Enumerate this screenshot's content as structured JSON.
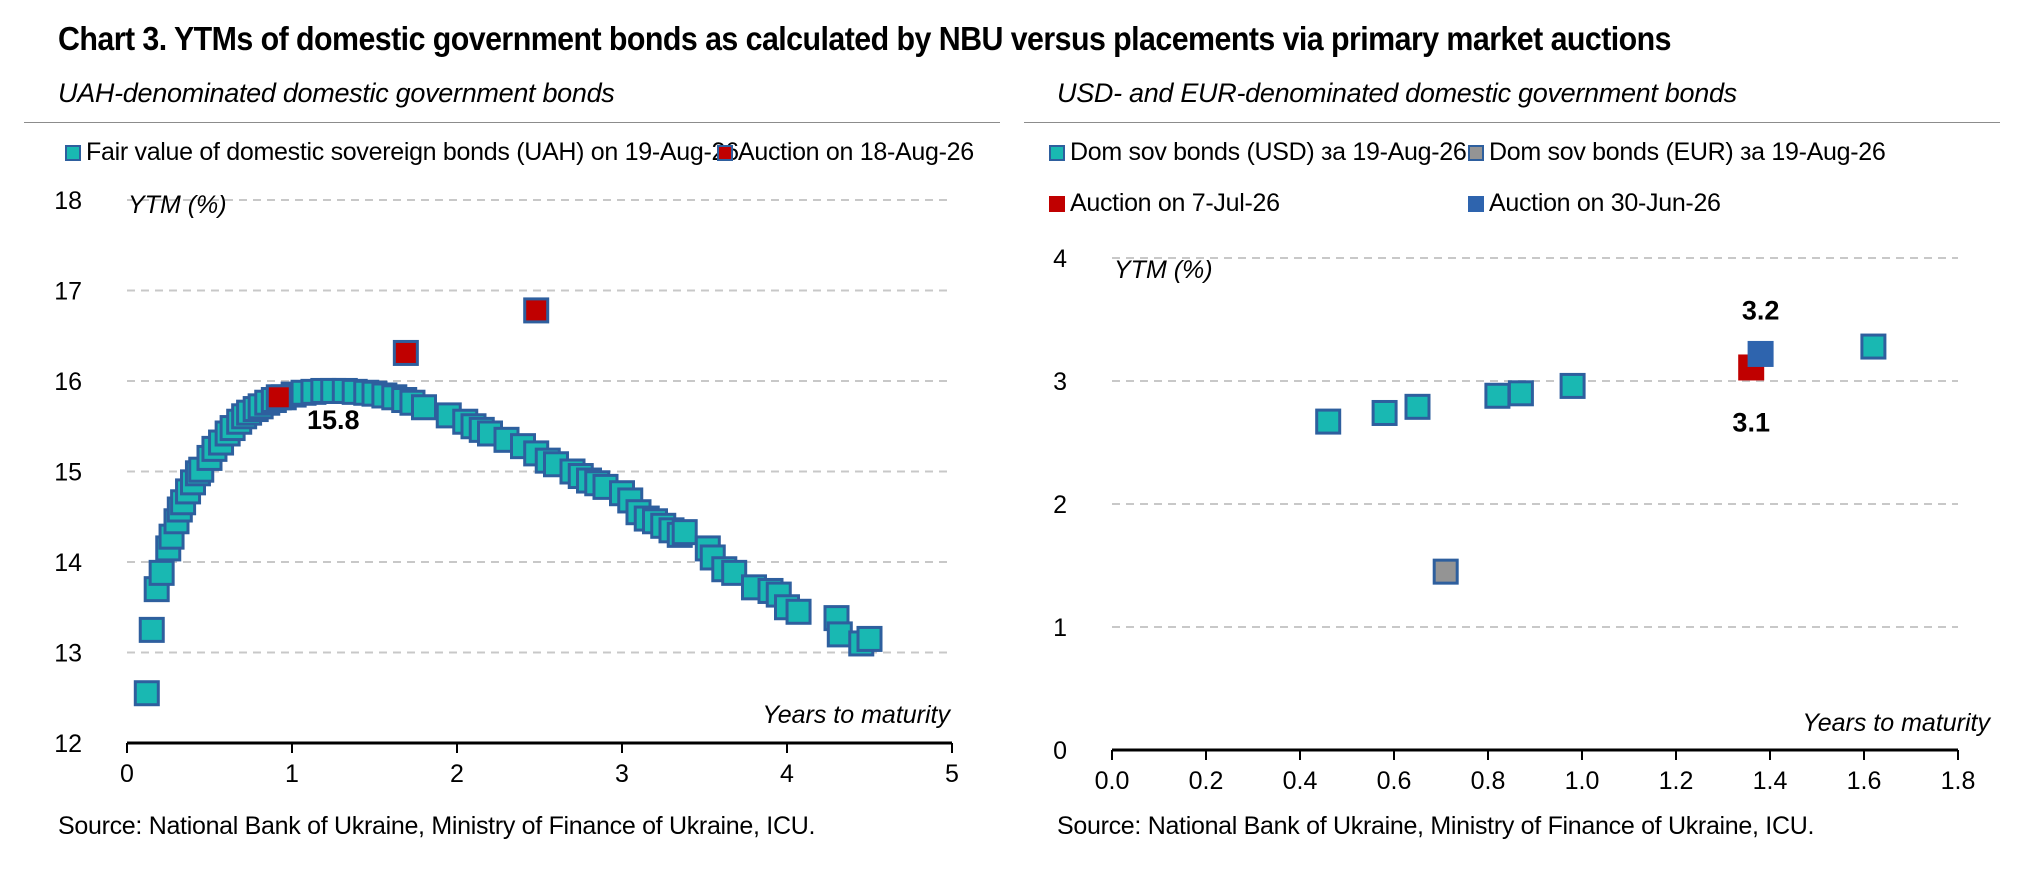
{
  "title": "Chart 3. YTMs of domestic government bonds as calculated by NBU versus placements via primary market auctions",
  "colors": {
    "teal": "#19b8b2",
    "teal_border": "#2e5f9e",
    "red": "#c00000",
    "grey": "#949494",
    "blue": "#2e64ae"
  },
  "chart_data": [
    {
      "type": "scatter",
      "subtitle": "UAH-denominated domestic government bonds",
      "ylabel": "YTM (%)",
      "xlabel": "Years to maturity",
      "xlim": [
        0,
        5
      ],
      "ylim": [
        12,
        18
      ],
      "xticks": [
        "0",
        "1",
        "2",
        "3",
        "4",
        "5"
      ],
      "yticks": [
        "12",
        "13",
        "14",
        "15",
        "16",
        "17",
        "18"
      ],
      "grid": "horizontal dashed",
      "legend_placement": "top",
      "series": [
        {
          "name": "Fair value of domestic sovereign bonds (UAH) on 19-Aug-26",
          "color": "#19b8b2",
          "points": [
            [
              0.12,
              12.55
            ],
            [
              0.15,
              13.25
            ],
            [
              0.18,
              13.7
            ],
            [
              0.21,
              13.88
            ],
            [
              0.25,
              14.15
            ],
            [
              0.27,
              14.28
            ],
            [
              0.3,
              14.45
            ],
            [
              0.32,
              14.58
            ],
            [
              0.34,
              14.66
            ],
            [
              0.37,
              14.78
            ],
            [
              0.4,
              14.88
            ],
            [
              0.43,
              14.98
            ],
            [
              0.45,
              15.02
            ],
            [
              0.5,
              15.15
            ],
            [
              0.53,
              15.25
            ],
            [
              0.57,
              15.32
            ],
            [
              0.61,
              15.42
            ],
            [
              0.64,
              15.48
            ],
            [
              0.68,
              15.55
            ],
            [
              0.71,
              15.61
            ],
            [
              0.74,
              15.65
            ],
            [
              0.78,
              15.69
            ],
            [
              0.81,
              15.72
            ],
            [
              0.85,
              15.76
            ],
            [
              0.89,
              15.79
            ],
            [
              0.95,
              15.82
            ],
            [
              1.01,
              15.85
            ],
            [
              1.07,
              15.87
            ],
            [
              1.13,
              15.88
            ],
            [
              1.19,
              15.89
            ],
            [
              1.25,
              15.89
            ],
            [
              1.32,
              15.89
            ],
            [
              1.38,
              15.88
            ],
            [
              1.45,
              15.87
            ],
            [
              1.5,
              15.86
            ],
            [
              1.56,
              15.84
            ],
            [
              1.62,
              15.82
            ],
            [
              1.68,
              15.79
            ],
            [
              1.73,
              15.76
            ],
            [
              1.8,
              15.71
            ],
            [
              1.95,
              15.62
            ],
            [
              2.05,
              15.55
            ],
            [
              2.1,
              15.5
            ],
            [
              2.15,
              15.46
            ],
            [
              2.2,
              15.42
            ],
            [
              2.3,
              15.35
            ],
            [
              2.4,
              15.28
            ],
            [
              2.48,
              15.2
            ],
            [
              2.55,
              15.12
            ],
            [
              2.6,
              15.08
            ],
            [
              2.7,
              15.0
            ],
            [
              2.75,
              14.95
            ],
            [
              2.8,
              14.9
            ],
            [
              2.85,
              14.87
            ],
            [
              2.9,
              14.83
            ],
            [
              3.0,
              14.76
            ],
            [
              3.05,
              14.68
            ],
            [
              3.1,
              14.55
            ],
            [
              3.15,
              14.48
            ],
            [
              3.2,
              14.45
            ],
            [
              3.25,
              14.4
            ],
            [
              3.3,
              14.35
            ],
            [
              3.35,
              14.3
            ],
            [
              3.38,
              14.33
            ],
            [
              3.52,
              14.15
            ],
            [
              3.55,
              14.05
            ],
            [
              3.62,
              13.92
            ],
            [
              3.68,
              13.88
            ],
            [
              3.8,
              13.72
            ],
            [
              3.9,
              13.68
            ],
            [
              3.95,
              13.64
            ],
            [
              4.0,
              13.5
            ],
            [
              4.07,
              13.45
            ],
            [
              4.3,
              13.38
            ],
            [
              4.32,
              13.2
            ],
            [
              4.45,
              13.1
            ],
            [
              4.5,
              13.15
            ]
          ]
        },
        {
          "name": "Auction on 18-Aug-26",
          "color": "#c00000",
          "points": [
            [
              0.92,
              15.82
            ],
            [
              1.69,
              16.31
            ],
            [
              2.48,
              16.78
            ]
          ]
        }
      ],
      "annotations": [
        {
          "text": "15.8",
          "x": 1.25,
          "y": 15.58
        }
      ]
    },
    {
      "type": "scatter",
      "subtitle": "USD- and EUR-denominated domestic government bonds",
      "ylabel": "YTM (%)",
      "xlabel": "Years to maturity",
      "xlim": [
        0,
        1.8
      ],
      "ylim": [
        0,
        4
      ],
      "xticks": [
        "0.0",
        "0.2",
        "0.4",
        "0.6",
        "0.8",
        "1.0",
        "1.2",
        "1.4",
        "1.6",
        "1.8"
      ],
      "yticks": [
        "0",
        "1",
        "2",
        "3",
        "4"
      ],
      "grid": "horizontal dashed",
      "legend_placement": "top",
      "series": [
        {
          "name": "Dom sov bonds (USD) за 19-Aug-26",
          "color": "#19b8b2",
          "points": [
            [
              0.46,
              2.67
            ],
            [
              0.58,
              2.74
            ],
            [
              0.65,
              2.79
            ],
            [
              0.82,
              2.88
            ],
            [
              0.87,
              2.9
            ],
            [
              0.98,
              2.96
            ],
            [
              1.62,
              3.28
            ]
          ]
        },
        {
          "name": "Dom sov bonds (EUR) за 19-Aug-26",
          "color": "#949494",
          "points": [
            [
              0.71,
              1.45
            ]
          ]
        },
        {
          "name": "Auction on 7-Jul-26",
          "color": "#c00000",
          "points": [
            [
              1.36,
              3.11
            ]
          ]
        },
        {
          "name": "Auction on 30-Jun-26",
          "color": "#2e64ae",
          "points": [
            [
              1.38,
              3.22
            ]
          ]
        }
      ],
      "annotations": [
        {
          "text": "3.2",
          "x": 1.38,
          "y": 3.58
        },
        {
          "text": "3.1",
          "x": 1.36,
          "y": 2.67
        }
      ]
    }
  ],
  "legend_left": [
    "Fair value of domestic sovereign bonds (UAH) on 19-Aug-26",
    "Auction on 18-Aug-26"
  ],
  "legend_right": [
    "Dom sov bonds (USD) за 19-Aug-26",
    "Dom sov bonds (EUR) за 19-Aug-26",
    "Auction on 7-Jul-26",
    "Auction on 30-Jun-26"
  ],
  "source_left": "Source: National Bank of Ukraine, Ministry of Finance of Ukraine, ICU.",
  "source_right": "Source: National Bank of Ukraine, Ministry of Finance of Ukraine, ICU."
}
